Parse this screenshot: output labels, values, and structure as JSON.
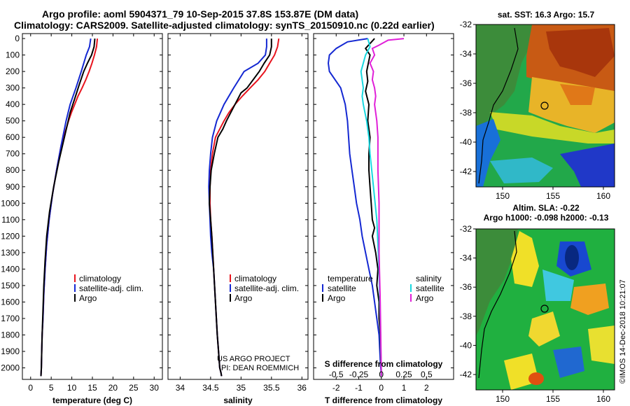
{
  "header": {
    "line1": "Argo profile: aoml 5904371_79 10-Sep-2015 37.8S 153.87E (DM data)",
    "line2": "Climatology: CARS2009. Satellite-adjusted climatology: synTS_20150910.nc (0.22d earlier)"
  },
  "colors": {
    "climatology": "#e8141e",
    "satellite": "#1428d2",
    "argo": "#000000",
    "sal_satellite": "#18d8e0",
    "sal_argo": "#e020d8"
  },
  "depth_axis": {
    "ticks": [
      0,
      100,
      200,
      300,
      400,
      500,
      600,
      700,
      800,
      900,
      1000,
      1100,
      1200,
      1300,
      1400,
      1500,
      1600,
      1700,
      1800,
      1900,
      2000
    ],
    "range": [
      -30,
      2070
    ]
  },
  "chart_data": [
    {
      "type": "line",
      "id": "temperature",
      "xlabel": "temperature (deg C)",
      "xlim": [
        -2,
        32
      ],
      "xticks": [
        0,
        5,
        10,
        15,
        20,
        25,
        30
      ],
      "legend": [
        "climatology",
        "satellite-adj. clim.",
        "Argo"
      ],
      "series": [
        {
          "name": "climatology",
          "x": [
            16.2,
            16.0,
            15.5,
            14.9,
            14.2,
            13.4,
            12.5,
            11.5,
            10.7,
            9.9,
            9.2,
            8.6,
            7.4,
            6.3,
            5.3,
            4.5,
            3.9,
            3.5,
            3.2,
            3.0,
            2.8,
            2.7,
            2.6,
            2.5
          ],
          "y": [
            0,
            50,
            100,
            150,
            200,
            250,
            300,
            350,
            400,
            450,
            500,
            550,
            650,
            800,
            950,
            1100,
            1250,
            1400,
            1550,
            1700,
            1800,
            1900,
            2000,
            2050
          ]
        },
        {
          "name": "satellite-adj. clim.",
          "x": [
            14.6,
            14.3,
            13.5,
            12.3,
            11.0,
            9.6,
            9.1,
            8.6,
            7.4,
            6.3,
            5.3,
            4.5,
            3.9,
            3.5,
            3.2,
            3.0,
            2.8,
            2.7,
            2.6,
            2.5
          ],
          "y": [
            0,
            50,
            100,
            200,
            300,
            400,
            450,
            500,
            650,
            800,
            950,
            1100,
            1250,
            1400,
            1550,
            1700,
            1800,
            1900,
            2000,
            2050
          ]
        },
        {
          "name": "Argo",
          "x": [
            15.6,
            15.4,
            14.8,
            13.8,
            12.9,
            11.8,
            10.9,
            9.6,
            8.2,
            6.8,
            5.6,
            4.6,
            3.9,
            3.5,
            3.2,
            3.0,
            2.8,
            2.7,
            2.6,
            2.5
          ],
          "y": [
            0,
            50,
            100,
            150,
            200,
            280,
            350,
            450,
            600,
            750,
            900,
            1050,
            1200,
            1350,
            1500,
            1650,
            1800,
            1900,
            2000,
            2050
          ]
        }
      ]
    },
    {
      "type": "line",
      "id": "salinity",
      "xlabel": "salinity",
      "xlim": [
        33.8,
        36.1
      ],
      "xticks": [
        34,
        34.5,
        35,
        35.5,
        36
      ],
      "legend": [
        "climatology",
        "satellite-adj. clim.",
        "Argo"
      ],
      "annotation": [
        "US ARGO PROJECT",
        "PI: DEAN ROEMMICH"
      ],
      "series": [
        {
          "name": "climatology",
          "x": [
            35.62,
            35.6,
            35.55,
            35.47,
            35.39,
            35.28,
            35.15,
            35.02,
            34.9,
            34.8,
            34.72,
            34.65,
            34.58,
            34.53,
            34.5,
            34.49,
            34.49,
            34.5,
            34.52,
            34.55,
            34.58,
            34.61,
            34.63,
            34.65,
            34.67,
            34.68
          ],
          "y": [
            0,
            50,
            100,
            150,
            200,
            250,
            300,
            350,
            400,
            450,
            500,
            550,
            600,
            700,
            800,
            900,
            1000,
            1100,
            1200,
            1400,
            1600,
            1800,
            1900,
            2000,
            2030,
            2050
          ]
        },
        {
          "name": "satellite-adj. clim.",
          "x": [
            35.42,
            35.42,
            35.4,
            35.28,
            35.05,
            34.88,
            34.72,
            34.6,
            34.53,
            34.5,
            34.48,
            34.47,
            34.48,
            34.49,
            34.5,
            34.52,
            34.55,
            34.58,
            34.61,
            34.63,
            34.65,
            34.67,
            34.68
          ],
          "y": [
            0,
            50,
            100,
            150,
            200,
            300,
            400,
            500,
            600,
            700,
            800,
            900,
            1000,
            1100,
            1200,
            1300,
            1400,
            1600,
            1800,
            1900,
            2000,
            2030,
            2050
          ]
        },
        {
          "name": "Argo",
          "x": [
            35.5,
            35.5,
            35.47,
            35.38,
            35.3,
            35.1,
            35.0,
            34.9,
            34.83,
            34.76,
            34.7,
            34.62,
            34.56,
            34.51,
            34.49,
            34.48,
            34.5,
            34.52,
            34.55,
            34.58,
            34.61,
            34.63,
            34.65,
            34.67,
            34.68
          ],
          "y": [
            0,
            50,
            100,
            150,
            200,
            300,
            330,
            400,
            450,
            500,
            550,
            600,
            700,
            800,
            900,
            1000,
            1100,
            1200,
            1400,
            1600,
            1800,
            1900,
            2000,
            2030,
            2050
          ]
        }
      ]
    },
    {
      "type": "line",
      "id": "difference",
      "xlabel": "T difference from climatology",
      "xlabel2": "S difference from climatology",
      "xlim": [
        -3,
        3.2
      ],
      "xticks": [
        -2,
        -1,
        0,
        1,
        2
      ],
      "xticks2": [
        -0.5,
        -0.25,
        0,
        0.25,
        0.5
      ],
      "xticks2_labels": [
        "-0.5",
        "-0.25",
        "0",
        "0.25",
        "0.5"
      ],
      "legend_temperature_title": "temperature",
      "legend_salinity_title": "salinity",
      "legend_entries": [
        "satellite",
        "Argo"
      ],
      "series": [
        {
          "name": "T satellite",
          "x": [
            -0.6,
            -1.5,
            -2.0,
            -2.3,
            -2.35,
            -2.3,
            -1.8,
            -1.6,
            -1.5,
            -1.45,
            -1.4,
            -1.3,
            -1.2,
            -1.1,
            -0.95,
            -0.85,
            -0.7,
            -0.55,
            -0.4,
            -0.3,
            -0.2,
            -0.1,
            -0.05,
            0
          ],
          "y": [
            0,
            20,
            60,
            100,
            150,
            200,
            300,
            400,
            500,
            600,
            700,
            800,
            900,
            1000,
            1100,
            1200,
            1300,
            1400,
            1500,
            1600,
            1700,
            1800,
            1950,
            2050
          ]
        },
        {
          "name": "T Argo",
          "x": [
            -0.3,
            -0.7,
            -0.5,
            -0.65,
            -0.6,
            -0.7,
            -0.55,
            -0.6,
            -0.5,
            -0.55,
            -0.55,
            -0.5,
            -0.45,
            -0.4,
            -0.3,
            -0.4,
            -0.25,
            -0.15,
            -0.2,
            -0.1,
            -0.1,
            -0.05,
            0
          ],
          "y": [
            0,
            60,
            100,
            200,
            260,
            320,
            400,
            500,
            600,
            700,
            800,
            900,
            1000,
            1100,
            1150,
            1200,
            1300,
            1400,
            1500,
            1600,
            1700,
            1800,
            2050
          ]
        },
        {
          "name": "S satellite",
          "x": [
            -0.6,
            -0.5,
            -0.7,
            -0.9,
            -0.8,
            -0.85,
            -0.8,
            -0.65,
            -0.55,
            -0.5,
            -0.35,
            -0.2,
            -0.1,
            -0.05,
            0
          ],
          "y": [
            0,
            50,
            100,
            200,
            300,
            350,
            400,
            500,
            600,
            700,
            900,
            1100,
            1400,
            1700,
            2050
          ]
        },
        {
          "name": "S Argo",
          "x": [
            1.0,
            0.3,
            -0.1,
            -0.4,
            -0.3,
            -0.5,
            -0.35,
            -0.4,
            -0.3,
            -0.25,
            -0.3,
            -0.2,
            -0.15,
            -0.15,
            -0.1,
            -0.1,
            -0.05,
            0
          ],
          "y": [
            0,
            10,
            40,
            60,
            100,
            150,
            200,
            250,
            300,
            350,
            400,
            500,
            600,
            800,
            1000,
            1300,
            1600,
            2050
          ]
        }
      ]
    }
  ],
  "map_sst": {
    "title": "sat. SST: 16.3 Argo: 15.7",
    "yticks": [
      "-32",
      "-34",
      "-36",
      "-38",
      "-40",
      "-42"
    ],
    "xticks": [
      "150",
      "155",
      "160"
    ]
  },
  "map_sla": {
    "title1": "Altim. SLA: -0.22",
    "title2": "Argo h1000: -0.098 h2000: -0.13",
    "yticks": [
      "-32",
      "-34",
      "-36",
      "-38",
      "-40",
      "-42"
    ],
    "xticks": [
      "150",
      "155",
      "160"
    ]
  },
  "credit": "©IMOS 14-Dec-2018 10:21:07"
}
